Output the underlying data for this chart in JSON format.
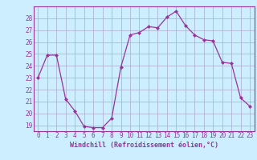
{
  "x": [
    0,
    1,
    2,
    3,
    4,
    5,
    6,
    7,
    8,
    9,
    10,
    11,
    12,
    13,
    14,
    15,
    16,
    17,
    18,
    19,
    20,
    21,
    22,
    23
  ],
  "y": [
    23.0,
    24.9,
    24.9,
    21.2,
    20.2,
    18.9,
    18.8,
    18.8,
    19.6,
    23.9,
    26.6,
    26.8,
    27.3,
    27.2,
    28.1,
    28.6,
    27.4,
    26.6,
    26.2,
    26.1,
    24.3,
    24.2,
    21.3,
    20.6
  ],
  "line_color": "#993399",
  "marker": "D",
  "marker_size": 2,
  "bg_color": "#cceeff",
  "grid_color": "#aaaacc",
  "xlabel": "Windchill (Refroidissement éolien,°C)",
  "xlabel_color": "#993399",
  "tick_color": "#993399",
  "spine_color": "#993399",
  "ylim": [
    18.5,
    29.0
  ],
  "xlim": [
    -0.5,
    23.5
  ],
  "yticks": [
    19,
    20,
    21,
    22,
    23,
    24,
    25,
    26,
    27,
    28
  ],
  "xticks": [
    0,
    1,
    2,
    3,
    4,
    5,
    6,
    7,
    8,
    9,
    10,
    11,
    12,
    13,
    14,
    15,
    16,
    17,
    18,
    19,
    20,
    21,
    22,
    23
  ],
  "tick_fontsize": 5.5,
  "xlabel_fontsize": 6.0
}
